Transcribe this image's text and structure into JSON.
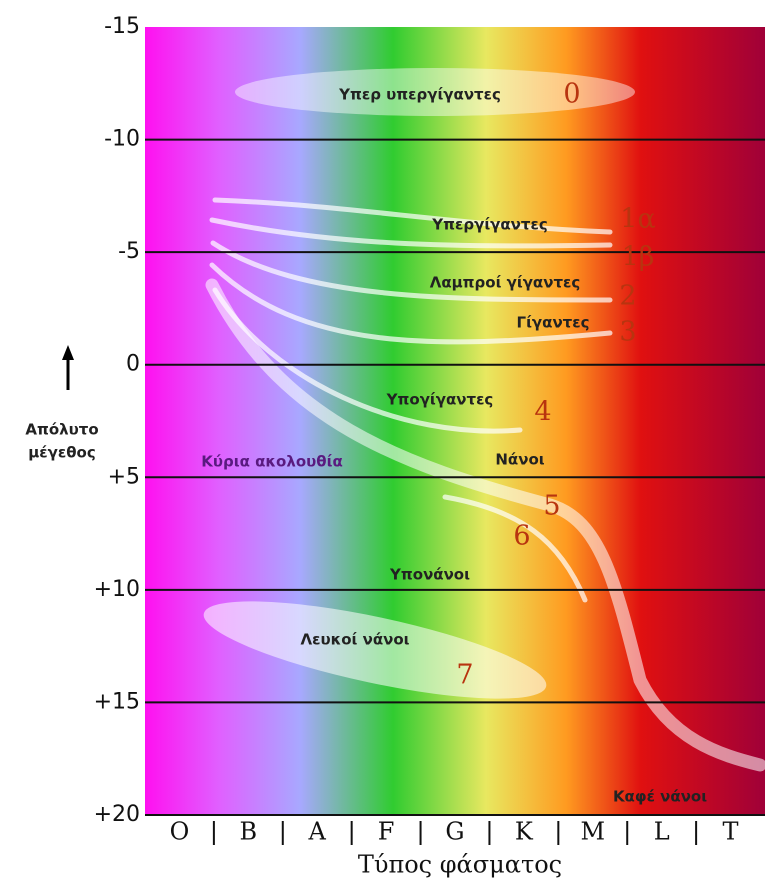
{
  "y_axis": {
    "label_lines": [
      "Απόλυτο",
      "μέγεθος"
    ],
    "ticks": [
      "-15",
      "-10",
      "-5",
      "0",
      "+5",
      "+10",
      "+15",
      "+20"
    ]
  },
  "x_axis": {
    "label": "Τύπος φάσματος",
    "classes": [
      "O",
      "B",
      "A",
      "F",
      "G",
      "K",
      "M",
      "L",
      "T"
    ]
  },
  "regions": [
    {
      "label": "Υπερ υπεργίγαντες",
      "class": "0"
    },
    {
      "label": "Υπεργίγαντες",
      "class": "1α"
    },
    {
      "class": "1β"
    },
    {
      "label": "Λαμπροί γίγαντες",
      "class": "2"
    },
    {
      "label": "Γίγαντες",
      "class": "3"
    },
    {
      "label": "Υπογίγαντες",
      "class": "4"
    },
    {
      "label": "Νάνοι",
      "class": "5"
    },
    {
      "class": "6"
    },
    {
      "label": "Λευκοί νάνοι",
      "class": "7"
    }
  ],
  "other_labels": {
    "main_sequence": "Κύρια ακολουθία",
    "subdwarfs": "Υπονάνοι",
    "brown_dwarfs": "Καφέ νάνοι"
  }
}
